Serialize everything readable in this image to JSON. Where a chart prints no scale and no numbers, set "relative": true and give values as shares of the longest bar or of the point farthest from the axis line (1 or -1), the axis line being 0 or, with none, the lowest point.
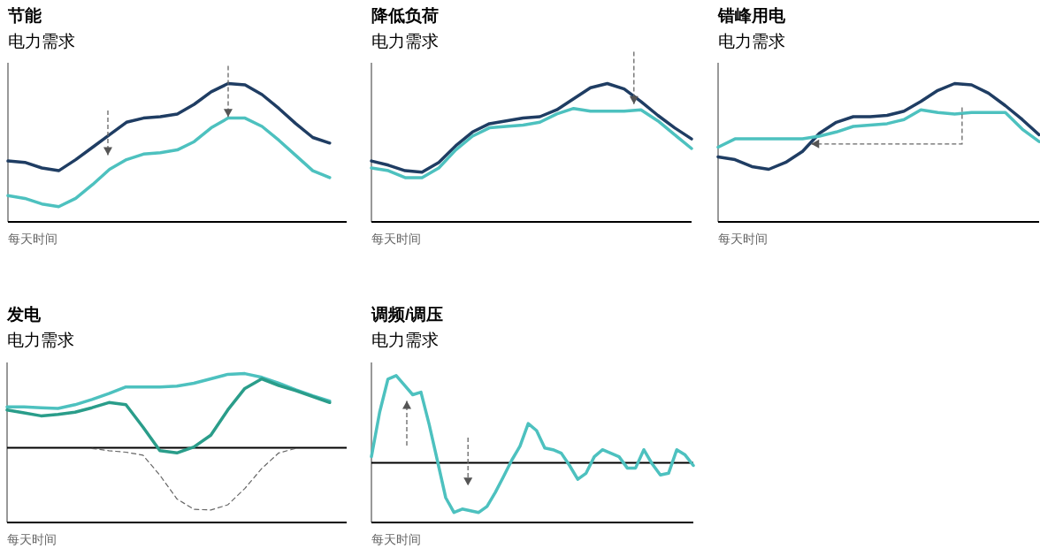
{
  "chart_data": [
    {
      "type": "line",
      "title": "节能",
      "subtitle": "电力需求",
      "xlabel": "每天时间",
      "relative": true,
      "categories": [
        null,
        null,
        null,
        null,
        null,
        null,
        null,
        null,
        null,
        null,
        null,
        null,
        null,
        null,
        null,
        null,
        null,
        null,
        null,
        null,
        null
      ],
      "series": [
        {
          "color": "#1f3d63",
          "values": [
            0.44,
            0.43,
            0.39,
            0.37,
            0.45,
            0.54,
            0.63,
            0.72,
            0.75,
            0.76,
            0.78,
            0.85,
            0.94,
            1,
            0.99,
            0.92,
            0.82,
            0.71,
            0.61,
            0.57,
            null
          ]
        },
        {
          "color": "#4dc1bf",
          "values": [
            0.19,
            0.17,
            0.13,
            0.11,
            0.17,
            0.27,
            0.38,
            0.45,
            0.49,
            0.5,
            0.52,
            0.58,
            0.68,
            0.75,
            0.75,
            0.69,
            0.59,
            0.48,
            0.37,
            0.32,
            null
          ]
        }
      ]
    },
    {
      "type": "line",
      "title": "降低负荷",
      "subtitle": "电力需求",
      "xlabel": "每天时间",
      "relative": true,
      "categories": [
        null,
        null,
        null,
        null,
        null,
        null,
        null,
        null,
        null,
        null,
        null,
        null,
        null,
        null,
        null,
        null,
        null,
        null,
        null,
        null
      ],
      "series": [
        {
          "color": "#1f3d63",
          "values": [
            0.44,
            0.41,
            0.37,
            0.36,
            0.43,
            0.55,
            0.65,
            0.71,
            0.73,
            0.75,
            0.76,
            0.81,
            0.89,
            0.97,
            1,
            0.96,
            0.87,
            0.77,
            0.68,
            0.6
          ]
        },
        {
          "color": "#4dc1bf",
          "values": [
            0.39,
            0.37,
            0.32,
            0.32,
            0.39,
            0.52,
            0.62,
            0.68,
            0.69,
            0.7,
            0.72,
            0.78,
            0.82,
            0.8,
            0.8,
            0.8,
            0.81,
            0.73,
            0.63,
            0.53
          ]
        }
      ]
    },
    {
      "type": "line",
      "title": "错峰用电",
      "subtitle": "电力需求",
      "xlabel": "每天时间",
      "relative": true,
      "categories": [
        null,
        null,
        null,
        null,
        null,
        null,
        null,
        null,
        null,
        null,
        null,
        null,
        null,
        null,
        null,
        null,
        null,
        null,
        null,
        null
      ],
      "series": [
        {
          "color": "#1f3d63",
          "values": [
            0.47,
            0.45,
            0.4,
            0.38,
            0.43,
            0.51,
            0.64,
            0.72,
            0.76,
            0.76,
            0.77,
            0.8,
            0.87,
            0.95,
            1,
            0.99,
            0.93,
            0.84,
            0.74,
            0.63
          ]
        },
        {
          "color": "#4dc1bf",
          "values": [
            0.54,
            0.6,
            0.6,
            0.6,
            0.6,
            0.6,
            0.62,
            0.65,
            0.69,
            0.7,
            0.71,
            0.74,
            0.81,
            0.79,
            0.78,
            0.79,
            0.79,
            0.79,
            0.67,
            0.58
          ]
        }
      ]
    },
    {
      "type": "line",
      "title": "发电",
      "subtitle": "电力需求",
      "xlabel": "每天时间",
      "relative": true,
      "categories": [
        null,
        null,
        null,
        null,
        null,
        null,
        null,
        null,
        null,
        null,
        null,
        null,
        null,
        null,
        null,
        null,
        null,
        null,
        null,
        null,
        null
      ],
      "series": [
        {
          "color": "#666666",
          "line_style": "dashed",
          "values": [
            null,
            null,
            null,
            null,
            null,
            -0.01,
            -0.04,
            -0.06,
            -0.1,
            -0.37,
            -0.69,
            -0.83,
            -0.84,
            -0.77,
            -0.55,
            -0.28,
            -0.07,
            -0.01,
            null,
            null,
            null
          ]
        },
        {
          "color": "#4dc1bf",
          "values": [
            0.55,
            0.55,
            0.54,
            0.53,
            0.58,
            0.65,
            0.73,
            0.82,
            0.82,
            0.82,
            0.83,
            0.87,
            0.93,
            0.99,
            1,
            0.95,
            0.87,
            0.78,
            0.7,
            0.63,
            null
          ]
        },
        {
          "color": "#2a9d8a",
          "values": [
            0.51,
            0.47,
            0.43,
            0.45,
            0.48,
            0.54,
            0.61,
            0.58,
            0.28,
            -0.04,
            -0.07,
            0.01,
            0.17,
            0.51,
            0.8,
            0.93,
            0.84,
            0.77,
            0.69,
            0.61,
            null
          ]
        }
      ]
    },
    {
      "type": "line",
      "title": "调频/调压",
      "subtitle": "电力需求",
      "xlabel": "每天时间",
      "relative": true,
      "categories": [
        null,
        null,
        null,
        null,
        null,
        null,
        null,
        null,
        null,
        null,
        null,
        null,
        null,
        null,
        null,
        null,
        null,
        null,
        null,
        null,
        null,
        null,
        null,
        null,
        null,
        null,
        null,
        null,
        null,
        null,
        null,
        null,
        null,
        null,
        null,
        null,
        null,
        null,
        null,
        null
      ],
      "series": [
        {
          "color": "#4dc1bf",
          "values": [
            0.07,
            0.58,
            0.96,
            1,
            0.89,
            0.78,
            0.81,
            0.44,
            0.02,
            -0.4,
            -0.57,
            -0.53,
            -0.55,
            -0.57,
            -0.5,
            -0.34,
            -0.16,
            0.03,
            0.19,
            0.45,
            0.37,
            0.17,
            0.15,
            0.11,
            -0.03,
            -0.19,
            -0.12,
            0.07,
            0.15,
            0.11,
            0.07,
            -0.06,
            -0.06,
            0.15,
            -0.01,
            -0.14,
            -0.12,
            0.15,
            0.09,
            -0.03
          ]
        }
      ]
    }
  ]
}
